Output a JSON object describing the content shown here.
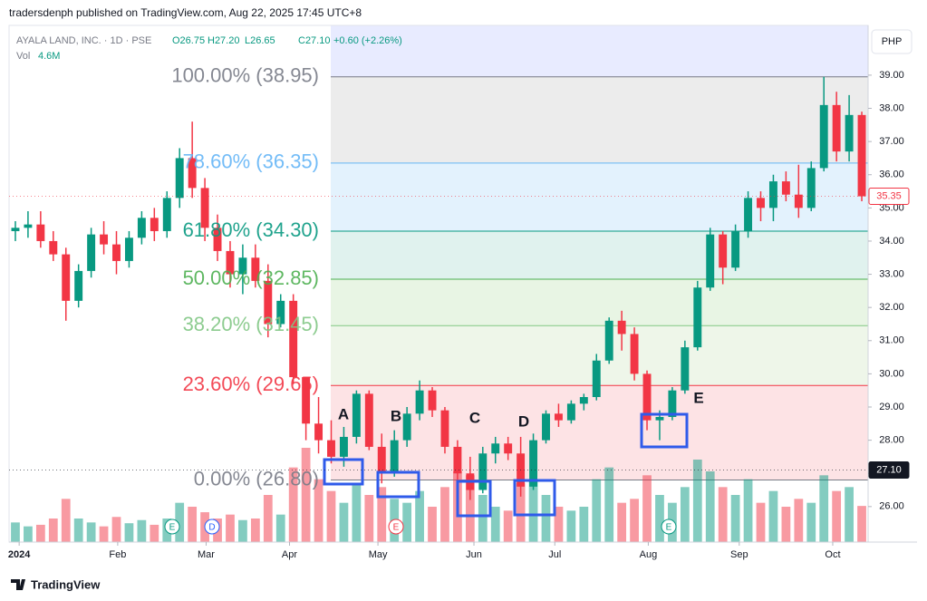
{
  "header": {
    "publisher": "tradersdenph published on TradingView.com, Aug 22, 2025 17:45 UTC+8",
    "symbol": "AYALA LAND, INC. · 1D · PSE",
    "open": "O26.75",
    "high": "H27.20",
    "low": "L26.65",
    "close": "C27.10",
    "change": "+0.60 (+2.26%)",
    "vol_label": "Vol",
    "vol_value": "4.6M",
    "currency": "PHP"
  },
  "footer": {
    "brand": "TradingView"
  },
  "chart_data": {
    "type": "candlestick",
    "ylim": [
      24.93,
      40.5
    ],
    "yticks": [
      {
        "value": 26,
        "label": "26.00"
      },
      {
        "value": 27,
        "label": "27.00"
      },
      {
        "value": 28,
        "label": "28.00"
      },
      {
        "value": 29,
        "label": "29.00"
      },
      {
        "value": 30,
        "label": "30.00"
      },
      {
        "value": 31,
        "label": "31.00"
      },
      {
        "value": 32,
        "label": "32.00"
      },
      {
        "value": 33,
        "label": "33.00"
      },
      {
        "value": 34,
        "label": "34.00"
      },
      {
        "value": 35,
        "label": "35.00"
      },
      {
        "value": 36,
        "label": "36.00"
      },
      {
        "value": 37,
        "label": "37.00"
      },
      {
        "value": 38,
        "label": "38.00"
      },
      {
        "value": 39,
        "label": "39.00"
      }
    ],
    "xlim": [
      0,
      68
    ],
    "xticks": [
      {
        "value": 0.8,
        "label": "2024"
      },
      {
        "value": 8.6,
        "label": "Feb"
      },
      {
        "value": 15.6,
        "label": "Mar"
      },
      {
        "value": 22.2,
        "label": "Apr"
      },
      {
        "value": 29.2,
        "label": "May"
      },
      {
        "value": 36.8,
        "label": "Jun"
      },
      {
        "value": 43.2,
        "label": "Jul"
      },
      {
        "value": 50.6,
        "label": "Aug"
      },
      {
        "value": 57.8,
        "label": "Sep"
      },
      {
        "value": 65.2,
        "label": "Oct"
      }
    ],
    "up_color": "#089981",
    "down_color": "#f23645",
    "ohlc": [
      [
        34.3,
        34.6,
        34.0,
        34.4
      ],
      [
        34.4,
        34.9,
        34.1,
        34.5
      ],
      [
        34.5,
        34.9,
        33.8,
        34.0
      ],
      [
        34.0,
        34.3,
        33.4,
        33.6
      ],
      [
        33.6,
        33.8,
        31.6,
        32.2
      ],
      [
        32.2,
        33.3,
        32.0,
        33.1
      ],
      [
        33.1,
        34.4,
        32.9,
        34.2
      ],
      [
        34.2,
        34.6,
        33.6,
        33.9
      ],
      [
        33.9,
        34.3,
        33.0,
        33.4
      ],
      [
        33.4,
        34.3,
        33.2,
        34.1
      ],
      [
        34.1,
        34.9,
        33.9,
        34.7
      ],
      [
        34.7,
        35.0,
        34.0,
        34.3
      ],
      [
        34.3,
        35.5,
        34.1,
        35.3
      ],
      [
        35.3,
        36.8,
        35.0,
        36.5
      ],
      [
        36.5,
        37.6,
        35.3,
        35.6
      ],
      [
        35.6,
        35.9,
        34.0,
        34.4
      ],
      [
        34.4,
        34.8,
        33.4,
        33.7
      ],
      [
        33.7,
        34.0,
        32.6,
        33.0
      ],
      [
        33.0,
        33.9,
        32.4,
        33.5
      ],
      [
        33.5,
        33.9,
        32.6,
        32.8
      ],
      [
        32.8,
        33.3,
        31.1,
        31.5
      ],
      [
        31.5,
        32.4,
        31.4,
        32.2
      ],
      [
        32.2,
        32.4,
        29.7,
        29.9
      ],
      [
        29.9,
        29.9,
        28.0,
        28.5
      ],
      [
        28.5,
        29.3,
        27.6,
        28.0
      ],
      [
        28.0,
        28.6,
        27.3,
        27.5
      ],
      [
        27.5,
        28.4,
        27.2,
        28.1
      ],
      [
        28.1,
        29.5,
        27.9,
        29.4
      ],
      [
        29.4,
        29.5,
        27.7,
        27.8
      ],
      [
        27.8,
        28.2,
        26.7,
        27.0
      ],
      [
        27.0,
        28.3,
        26.9,
        28.0
      ],
      [
        28.0,
        29.0,
        27.8,
        28.8
      ],
      [
        28.8,
        29.8,
        28.6,
        29.5
      ],
      [
        29.5,
        29.6,
        28.7,
        28.9
      ],
      [
        28.9,
        29.0,
        27.6,
        27.8
      ],
      [
        27.8,
        28.0,
        26.6,
        27.0
      ],
      [
        27.0,
        27.5,
        26.2,
        26.5
      ],
      [
        26.5,
        27.8,
        26.4,
        27.6
      ],
      [
        27.6,
        28.1,
        27.3,
        27.9
      ],
      [
        27.9,
        28.1,
        27.4,
        27.6
      ],
      [
        27.6,
        28.1,
        26.3,
        26.6
      ],
      [
        26.6,
        28.2,
        26.5,
        28.0
      ],
      [
        28.0,
        28.9,
        27.9,
        28.8
      ],
      [
        28.8,
        29.1,
        28.4,
        28.6
      ],
      [
        28.6,
        29.2,
        28.5,
        29.1
      ],
      [
        29.1,
        29.4,
        28.9,
        29.3
      ],
      [
        29.3,
        30.6,
        29.2,
        30.4
      ],
      [
        30.4,
        31.7,
        30.3,
        31.6
      ],
      [
        31.6,
        31.9,
        30.7,
        31.2
      ],
      [
        31.2,
        31.4,
        29.8,
        30.0
      ],
      [
        30.0,
        30.1,
        28.3,
        28.6
      ],
      [
        28.6,
        28.9,
        28.0,
        28.7
      ],
      [
        28.7,
        29.6,
        28.6,
        29.5
      ],
      [
        29.5,
        31.0,
        29.4,
        30.8
      ],
      [
        30.8,
        32.8,
        30.7,
        32.6
      ],
      [
        32.6,
        34.4,
        32.5,
        34.2
      ],
      [
        34.2,
        34.3,
        32.7,
        33.2
      ],
      [
        33.2,
        34.5,
        33.1,
        34.3
      ],
      [
        34.3,
        35.5,
        34.1,
        35.3
      ],
      [
        35.3,
        35.5,
        34.6,
        35.0
      ],
      [
        35.0,
        36.0,
        34.6,
        35.8
      ],
      [
        35.8,
        36.1,
        35.2,
        35.4
      ],
      [
        35.4,
        36.3,
        34.7,
        35.0
      ],
      [
        35.0,
        36.4,
        34.9,
        36.2
      ],
      [
        36.2,
        38.95,
        36.1,
        38.1
      ],
      [
        38.1,
        38.5,
        36.4,
        36.7
      ],
      [
        36.7,
        38.4,
        36.4,
        37.8
      ],
      [
        37.8,
        37.9,
        35.2,
        35.35
      ]
    ],
    "volume": [
      2.5,
      2.0,
      2.2,
      3.0,
      5.5,
      3.0,
      2.5,
      2.0,
      3.2,
      2.4,
      2.8,
      2.2,
      3.0,
      5.0,
      4.5,
      3.8,
      3.0,
      3.5,
      2.8,
      3.0,
      6.0,
      3.5,
      9.5,
      12.0,
      8.0,
      6.5,
      5.0,
      7.5,
      6.0,
      7.0,
      5.5,
      5.0,
      6.5,
      4.5,
      7.0,
      9.0,
      8.5,
      6.0,
      4.5,
      4.0,
      7.5,
      8.0,
      6.0,
      4.5,
      4.0,
      4.5,
      8.0,
      9.5,
      5.0,
      5.5,
      8.5,
      6.0,
      5.0,
      7.0,
      10.5,
      9.0,
      7.0,
      6.0,
      8.0,
      5.0,
      6.5,
      4.5,
      5.5,
      5.0,
      8.5,
      6.5,
      7.0,
      4.6
    ],
    "vol_max": 15,
    "fib_levels": [
      {
        "value": 38.95,
        "label": "100.00% (38.95)",
        "color": "#787b86"
      },
      {
        "value": 36.35,
        "label": "78.60% (36.35)",
        "color": "#64b5f6"
      },
      {
        "value": 34.3,
        "label": "61.80% (34.30)",
        "color": "#089981"
      },
      {
        "value": 32.85,
        "label": "50.00% (32.85)",
        "color": "#4caf50"
      },
      {
        "value": 31.45,
        "label": "38.20% (31.45)",
        "color": "#81c784"
      },
      {
        "value": 29.65,
        "label": "23.60% (29.65)",
        "color": "#f23645"
      },
      {
        "value": 26.8,
        "label": "0.00% (26.80)",
        "color": "#787b86"
      }
    ],
    "price_tags": [
      {
        "value": 35.35,
        "label": "35.35",
        "color": "#f23645"
      },
      {
        "value": 27.1,
        "label": "27.10",
        "color": "#131722"
      }
    ],
    "annotations": [
      "A",
      "B",
      "C",
      "D",
      "E"
    ],
    "events": [
      "E",
      "D",
      "E",
      "E"
    ]
  }
}
